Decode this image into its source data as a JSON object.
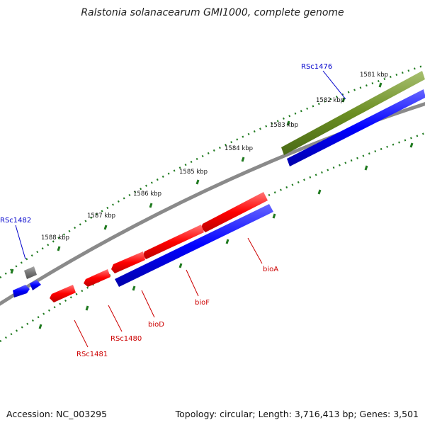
{
  "title": "Ralstonia solanacearum GMI1000, complete genome",
  "accession": "Accession: NC_003295",
  "summary": "Topology: circular; Length: 3,716,413 bp; Genes: 3,501",
  "colors": {
    "backbone": "#8a8a8a",
    "ticks": "#1f7a1f",
    "forward": "#ff0000",
    "reverse": "#0000ff",
    "highlight": "#6b8e23",
    "other": "#777777",
    "blue_label": "#0000cc",
    "red_label": "#cc0000"
  },
  "kbp_labels": [
    "1581 kbp",
    "1582 kbp",
    "1583 kbp",
    "1584 kbp",
    "1585 kbp",
    "1586 kbp",
    "1587 kbp",
    "1588 kbp"
  ],
  "gene_labels": {
    "rsc1476": "RSc1476",
    "rsc1482": "RSc1482",
    "bioA": "bioA",
    "bioF": "bioF",
    "bioD": "bioD",
    "rsc1480": "RSc1480",
    "rsc1481": "RSc1481"
  }
}
